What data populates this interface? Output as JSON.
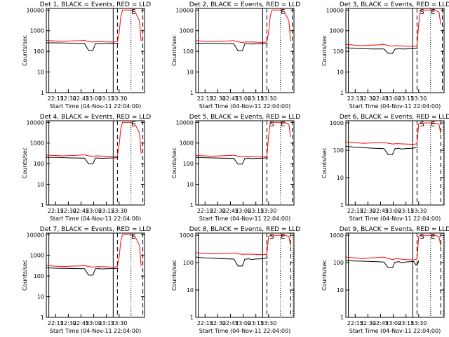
{
  "figure": {
    "background": "#ffffff",
    "events_color": "#000000",
    "lld_color": "#ff0000"
  },
  "chart_data": [
    {
      "id": 1,
      "type": "line",
      "title": "Det 1, BLACK = Events, RED = LLD",
      "variant": "A",
      "markers": {
        "S": "",
        "E": "E"
      },
      "yticks": [
        "1",
        "10",
        "100",
        "1000",
        "10000"
      ],
      "xticks": [
        "22:15",
        "22:30",
        "22:45",
        "23:00",
        "23:15",
        "23:30"
      ],
      "xlabel": "Start Time (04-Nov-11 22:04:00)",
      "ylabel": "Counts/sec",
      "xlim": [
        0,
        116
      ],
      "ylim": [
        1,
        12000
      ],
      "yscale": "log",
      "xunit": "minutes after 22:04:00",
      "series": [
        {
          "name": "Events",
          "x": [
            0,
            10,
            30,
            45,
            50,
            55,
            58,
            61,
            62,
            66,
            70,
            80,
            85
          ],
          "y": [
            260,
            260,
            250,
            240,
            110,
            110,
            240,
            240,
            245,
            235,
            240,
            240,
            250
          ]
        },
        {
          "name": "LLD",
          "x": [
            0,
            10,
            20,
            30,
            40,
            45,
            50,
            55,
            60,
            70,
            80,
            84,
            86,
            88,
            90,
            92,
            95,
            100,
            105,
            110,
            112
          ],
          "y": [
            340,
            320,
            310,
            320,
            330,
            340,
            300,
            280,
            300,
            290,
            280,
            300,
            800,
            5000,
            10000,
            10000,
            10000,
            10000,
            8000,
            3000,
            300
          ]
        }
      ]
    },
    {
      "id": 2,
      "type": "line",
      "title": "Det 2, BLACK = Events, RED = LLD",
      "variant": "A",
      "markers": {
        "S": "",
        "E": "E"
      },
      "yticks": [
        "1",
        "10",
        "100",
        "1000",
        "10000"
      ],
      "xticks": [
        "22:15",
        "22:30",
        "22:45",
        "23:00",
        "23:15",
        "23:30"
      ],
      "xlabel": "Start Time (04-Nov-11 22:04:00)",
      "ylabel": "Counts/sec",
      "xlim": [
        0,
        116
      ],
      "ylim": [
        1,
        12000
      ],
      "yscale": "log",
      "xunit": "minutes after 22:04:00",
      "series": [
        {
          "name": "Events",
          "x": [
            0,
            10,
            30,
            45,
            50,
            55,
            58,
            61,
            62,
            66,
            70,
            80,
            85
          ],
          "y": [
            250,
            250,
            240,
            230,
            105,
            105,
            230,
            230,
            235,
            225,
            230,
            230,
            240
          ]
        },
        {
          "name": "LLD",
          "x": [
            0,
            10,
            20,
            30,
            40,
            45,
            50,
            55,
            60,
            70,
            80,
            84,
            86,
            88,
            90,
            92,
            95,
            100,
            105,
            110,
            112
          ],
          "y": [
            330,
            310,
            300,
            310,
            320,
            330,
            290,
            270,
            290,
            280,
            270,
            290,
            800,
            5000,
            10000,
            10000,
            10000,
            10000,
            8000,
            3000,
            300
          ]
        }
      ]
    },
    {
      "id": 3,
      "type": "line",
      "title": "Det 3, BLACK = Events, RED = LLD",
      "variant": "B",
      "markers": {
        "S": "S",
        "E": "E"
      },
      "yticks": [
        "1",
        "10",
        "100",
        "1000",
        "10000"
      ],
      "xticks": [
        "22:15",
        "22:30",
        "22:45",
        "23:00",
        "23:15",
        "23:30"
      ],
      "xlabel": "Start Time (04-Nov-11 22:04:00)",
      "ylabel": "Counts/sec",
      "xlim": [
        0,
        116
      ],
      "ylim": [
        1,
        12000
      ],
      "yscale": "log",
      "xunit": "minutes after 22:04:00",
      "series": [
        {
          "name": "Events",
          "x": [
            0,
            10,
            30,
            45,
            50,
            55,
            58,
            61,
            62,
            66,
            70,
            80,
            85
          ],
          "y": [
            150,
            140,
            130,
            130,
            80,
            80,
            130,
            130,
            140,
            130,
            130,
            135,
            140
          ]
        },
        {
          "name": "LLD",
          "x": [
            0,
            10,
            20,
            30,
            40,
            45,
            50,
            55,
            60,
            70,
            80,
            84,
            86,
            88,
            90,
            92,
            95,
            100,
            105,
            110,
            112
          ],
          "y": [
            220,
            200,
            190,
            200,
            210,
            220,
            190,
            180,
            190,
            180,
            175,
            185,
            2000,
            10000,
            10000,
            10000,
            10000,
            10000,
            10000,
            8000,
            2000
          ]
        }
      ]
    },
    {
      "id": 4,
      "type": "line",
      "title": "Det 4, BLACK = Events, RED = LLD",
      "variant": "A",
      "markers": {
        "S": "",
        "E": "E"
      },
      "yticks": [
        "1",
        "10",
        "100",
        "1000",
        "10000"
      ],
      "xticks": [
        "22:15",
        "22:30",
        "22:45",
        "23:00",
        "23:15",
        "23:30"
      ],
      "xlabel": "Start Time (04-Nov-11 22:04:00)",
      "ylabel": "Counts/sec",
      "xlim": [
        0,
        116
      ],
      "ylim": [
        1,
        12000
      ],
      "yscale": "log",
      "xunit": "minutes after 22:04:00",
      "series": [
        {
          "name": "Events",
          "x": [
            0,
            10,
            30,
            45,
            50,
            55,
            58,
            61,
            62,
            66,
            70,
            80,
            85
          ],
          "y": [
            200,
            200,
            190,
            185,
            100,
            100,
            185,
            185,
            190,
            180,
            185,
            190,
            200
          ]
        },
        {
          "name": "LLD",
          "x": [
            0,
            10,
            20,
            30,
            40,
            45,
            50,
            55,
            60,
            70,
            80,
            84,
            86,
            88,
            90,
            92,
            95,
            100,
            105,
            110,
            112
          ],
          "y": [
            260,
            250,
            240,
            250,
            260,
            270,
            240,
            230,
            240,
            230,
            225,
            235,
            800,
            5000,
            10000,
            10000,
            10000,
            10000,
            8000,
            3000,
            300
          ]
        }
      ]
    },
    {
      "id": 5,
      "type": "line",
      "title": "Det 5, BLACK = Events, RED = LLD",
      "variant": "B",
      "markers": {
        "S": "S",
        "E": "E"
      },
      "yticks": [
        "1",
        "10",
        "100",
        "1000",
        "10000"
      ],
      "xticks": [
        "22:15",
        "22:30",
        "22:45",
        "23:00",
        "23:15",
        "23:30"
      ],
      "xlabel": "Start Time (04-Nov-11 22:04:00)",
      "ylabel": "Counts/sec",
      "xlim": [
        0,
        116
      ],
      "ylim": [
        1,
        12000
      ],
      "yscale": "log",
      "xunit": "minutes after 22:04:00",
      "series": [
        {
          "name": "Events",
          "x": [
            0,
            10,
            30,
            45,
            50,
            55,
            58,
            61,
            62,
            66,
            70,
            80,
            85
          ],
          "y": [
            200,
            195,
            185,
            180,
            95,
            95,
            180,
            180,
            185,
            175,
            180,
            185,
            195
          ]
        },
        {
          "name": "LLD",
          "x": [
            0,
            10,
            20,
            30,
            40,
            45,
            50,
            55,
            60,
            70,
            80,
            84,
            86,
            88,
            90,
            92,
            95,
            100,
            105,
            110,
            112
          ],
          "y": [
            250,
            240,
            230,
            240,
            250,
            260,
            230,
            220,
            230,
            220,
            215,
            225,
            2000,
            10000,
            10000,
            10000,
            10000,
            10000,
            10000,
            8000,
            2000
          ]
        }
      ]
    },
    {
      "id": 6,
      "type": "line",
      "title": "Det 6, BLACK = Events, RED = LLD",
      "variant": "C",
      "markers": {
        "S": "S",
        "E": "E"
      },
      "yticks": [
        "1",
        "10",
        "100",
        "1000"
      ],
      "xticks": [
        "22:15",
        "22:30",
        "22:45",
        "23:00",
        "23:15",
        "23:30"
      ],
      "xlabel": "Start Time (04-Nov-11 22:04:00)",
      "ylabel": "Counts/sec",
      "xlim": [
        0,
        116
      ],
      "ylim": [
        1,
        1200
      ],
      "yscale": "log",
      "xunit": "minutes after 22:04:00",
      "series": [
        {
          "name": "Events",
          "x": [
            0,
            10,
            30,
            45,
            50,
            55,
            58,
            61,
            62,
            66,
            70,
            80,
            85
          ],
          "y": [
            140,
            130,
            120,
            115,
            70,
            70,
            115,
            115,
            120,
            110,
            115,
            120,
            130
          ]
        },
        {
          "name": "LLD",
          "x": [
            0,
            10,
            20,
            30,
            40,
            45,
            50,
            55,
            60,
            70,
            80,
            84,
            86,
            88,
            90,
            92,
            95,
            100,
            105,
            110,
            112
          ],
          "y": [
            200,
            190,
            180,
            185,
            190,
            195,
            180,
            170,
            175,
            170,
            165,
            175,
            900,
            1000,
            1000,
            1000,
            1000,
            1000,
            1000,
            900,
            400
          ]
        }
      ]
    },
    {
      "id": 7,
      "type": "line",
      "title": "Det 7, BLACK = Events, RED = LLD",
      "variant": "A",
      "markers": {
        "S": "",
        "E": "E"
      },
      "yticks": [
        "1",
        "10",
        "100",
        "1000",
        "10000"
      ],
      "xticks": [
        "22:15",
        "22:30",
        "22:45",
        "23:00",
        "23:15",
        "23:30"
      ],
      "xlabel": "Start Time (04-Nov-11 22:04:00)",
      "ylabel": "Counts/sec",
      "xlim": [
        0,
        116
      ],
      "ylim": [
        1,
        12000
      ],
      "yscale": "log",
      "xunit": "minutes after 22:04:00",
      "series": [
        {
          "name": "Events",
          "x": [
            0,
            10,
            30,
            45,
            50,
            55,
            58,
            61,
            62,
            66,
            70,
            80,
            85
          ],
          "y": [
            250,
            240,
            230,
            225,
            110,
            110,
            225,
            225,
            230,
            220,
            225,
            230,
            240
          ]
        },
        {
          "name": "LLD",
          "x": [
            0,
            10,
            20,
            30,
            40,
            45,
            50,
            55,
            60,
            70,
            80,
            84,
            86,
            88,
            90,
            92,
            95,
            100,
            105,
            110,
            112
          ],
          "y": [
            320,
            300,
            290,
            300,
            310,
            320,
            290,
            270,
            290,
            280,
            270,
            290,
            800,
            5000,
            10000,
            10000,
            10000,
            10000,
            8000,
            3000,
            300
          ]
        }
      ]
    },
    {
      "id": 8,
      "type": "line",
      "title": "Det 8, BLACK = Events, RED = LLD",
      "variant": "C",
      "markers": {
        "S": "S",
        "E": "E"
      },
      "yticks": [
        "1",
        "10",
        "100",
        "1000"
      ],
      "xticks": [
        "22:15",
        "22:30",
        "22:45",
        "23:00",
        "23:15",
        "23:30"
      ],
      "xlabel": "Start Time (04-Nov-11 22:04:00)",
      "ylabel": "Counts/sec",
      "xlim": [
        0,
        116
      ],
      "ylim": [
        1,
        1200
      ],
      "yscale": "log",
      "xunit": "minutes after 22:04:00",
      "series": [
        {
          "name": "Events",
          "x": [
            0,
            10,
            30,
            45,
            50,
            55,
            58,
            61,
            62,
            66,
            70,
            80,
            85
          ],
          "y": [
            160,
            150,
            140,
            135,
            75,
            75,
            135,
            135,
            140,
            130,
            135,
            140,
            150
          ]
        },
        {
          "name": "LLD",
          "x": [
            0,
            10,
            20,
            30,
            40,
            45,
            50,
            55,
            60,
            70,
            80,
            84,
            86,
            88,
            90,
            92,
            95,
            100,
            105,
            110,
            112
          ],
          "y": [
            230,
            220,
            210,
            215,
            220,
            225,
            210,
            200,
            205,
            200,
            195,
            205,
            900,
            1000,
            1000,
            1000,
            1000,
            1000,
            1000,
            900,
            400
          ]
        }
      ]
    },
    {
      "id": 9,
      "type": "line",
      "title": "Det 9, BLACK = Events, RED = LLD",
      "variant": "C",
      "markers": {
        "S": "S",
        "E": "E"
      },
      "yticks": [
        "1",
        "10",
        "100",
        "1000"
      ],
      "xticks": [
        "22:15",
        "22:30",
        "22:45",
        "23:00",
        "23:15",
        "23:30"
      ],
      "xlabel": "Start Time (04-Nov-11 22:04:00)",
      "ylabel": "Counts/sec",
      "xlim": [
        0,
        116
      ],
      "ylim": [
        1,
        1200
      ],
      "yscale": "log",
      "xunit": "minutes after 22:04:00",
      "series": [
        {
          "name": "Events",
          "x": [
            0,
            10,
            30,
            45,
            50,
            55,
            58,
            61,
            62,
            66,
            70,
            80,
            83,
            85,
            86
          ],
          "y": [
            120,
            115,
            110,
            105,
            65,
            65,
            105,
            105,
            110,
            100,
            105,
            110,
            80,
            90,
            120
          ]
        },
        {
          "name": "LLD",
          "x": [
            0,
            10,
            20,
            30,
            40,
            45,
            50,
            55,
            60,
            70,
            80,
            84,
            86,
            88,
            90,
            92,
            95,
            100,
            105,
            110,
            112
          ],
          "y": [
            160,
            150,
            140,
            150,
            155,
            160,
            140,
            130,
            140,
            130,
            125,
            135,
            900,
            1000,
            1000,
            1000,
            1000,
            1000,
            1000,
            900,
            400
          ]
        }
      ]
    }
  ]
}
